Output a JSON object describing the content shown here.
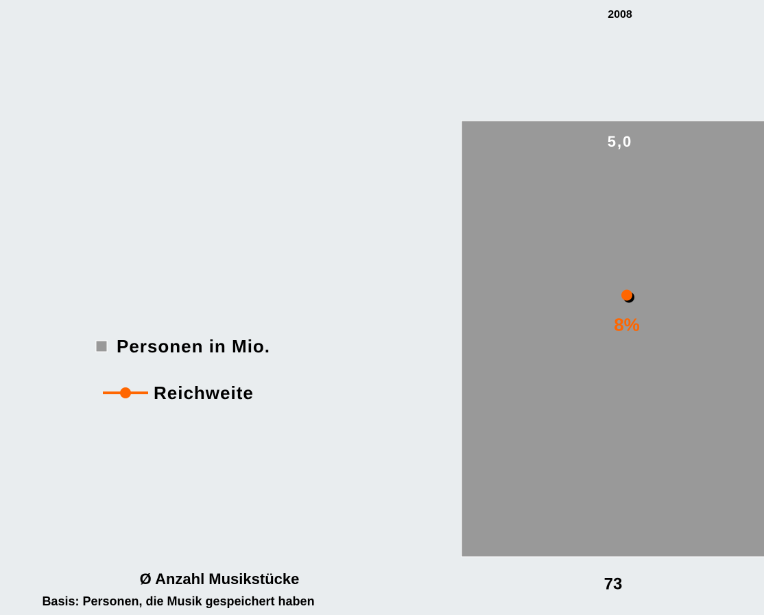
{
  "chart_data": {
    "type": "bar",
    "categories": [
      "2008"
    ],
    "series": [
      {
        "name": "Personen in Mio.",
        "color": "#999999",
        "values": [
          5.0
        ],
        "value_labels": [
          "5,0"
        ]
      },
      {
        "name": "Reichweite",
        "color": "#ff6600",
        "type": "line",
        "axis": "y2",
        "values": [
          8
        ],
        "value_labels": [
          "8%"
        ]
      }
    ],
    "ylim": [
      0,
      6
    ],
    "y2lim": [
      0,
      16
    ],
    "legend": "left",
    "table_row": {
      "label": "Ø Anzahl Musikstücke",
      "values": [
        73
      ]
    },
    "footnote": "Basis: Personen, die Musik gespeichert haben"
  }
}
